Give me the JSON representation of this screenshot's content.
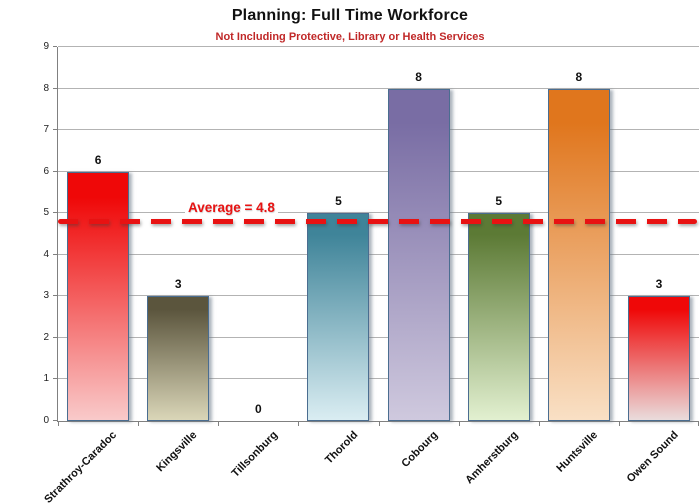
{
  "chart_data": {
    "type": "bar",
    "title": "Planning: Full Time Workforce",
    "subtitle": "Not Including Protective, Library or Health Services",
    "categories": [
      "Strathroy-Caradoc",
      "Kingsville",
      "Tillsonburg",
      "Thorold",
      "Cobourg",
      "Amherstburg",
      "Huntsville",
      "Owen Sound"
    ],
    "values": [
      6,
      3,
      0,
      5,
      8,
      5,
      8,
      3
    ],
    "average": 4.8,
    "average_label": "Average = 4.8",
    "ylim": [
      0,
      9
    ],
    "ytick_step": 1,
    "grid": true,
    "legend": "none",
    "xlabel": "",
    "ylabel": "",
    "bar_colors": [
      {
        "top": "#ef0808",
        "bottom": "#f9caca"
      },
      {
        "top": "#5b553d",
        "bottom": "#dad6b8"
      },
      {
        "top": "#ffffff",
        "bottom": "#ffffff"
      },
      {
        "top": "#3f8499",
        "bottom": "#daedf2"
      },
      {
        "top": "#796da4",
        "bottom": "#cfc9de"
      },
      {
        "top": "#5c7a35",
        "bottom": "#e2f0d0"
      },
      {
        "top": "#e0761d",
        "bottom": "#f9e0c5"
      },
      {
        "top": "#ef0808",
        "bottom": "#eadcdc"
      }
    ],
    "accent_colors": {
      "average_line": "#e81212",
      "subtitle_text": "#c02828",
      "bar_border": "#4a6d90",
      "gridline": "#b3b3b3",
      "axis": "#808080",
      "title_text": "#111111"
    }
  }
}
